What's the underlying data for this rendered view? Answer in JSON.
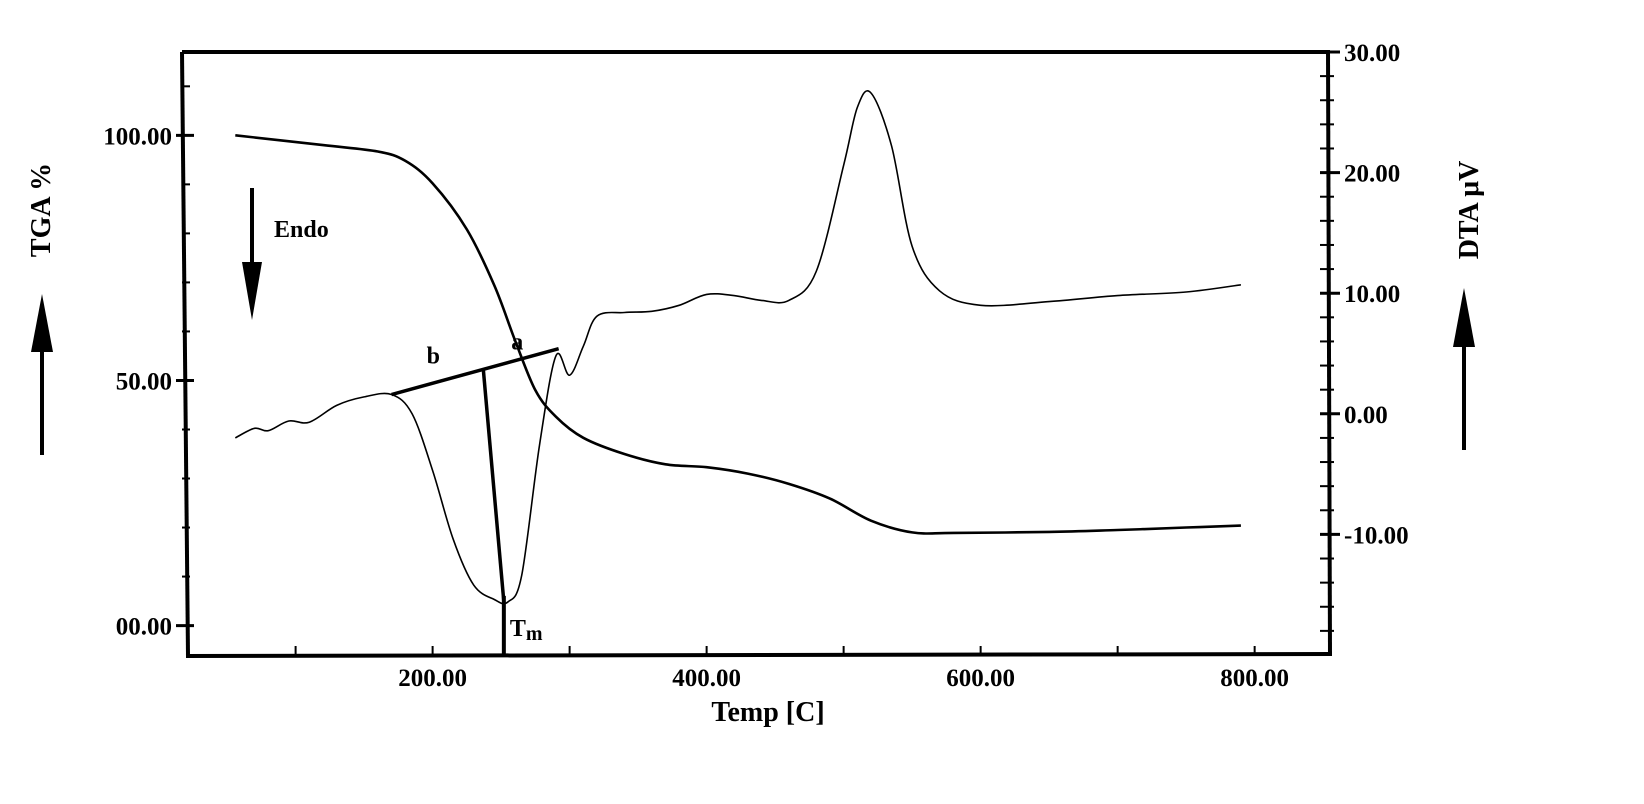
{
  "chart_data": {
    "type": "line",
    "xlabel": "Temp [C]",
    "ylabel_left": "TGA %",
    "ylabel_right": "DTA μV",
    "xlim": [
      20,
      855
    ],
    "x_ticks": [
      {
        "value": 200,
        "label": "200.00"
      },
      {
        "value": 400,
        "label": "400.00"
      },
      {
        "value": 600,
        "label": "600.00"
      },
      {
        "value": 800,
        "label": "800.00"
      }
    ],
    "ylim_left": [
      -6,
      117
    ],
    "left_ticks": [
      {
        "value": 0,
        "label": "00.00"
      },
      {
        "value": 50,
        "label": "50.00"
      },
      {
        "value": 100,
        "label": "100.00"
      }
    ],
    "ylim_right": [
      -20,
      30
    ],
    "right_ticks": [
      {
        "value": 30,
        "label": "30.00"
      },
      {
        "value": 20,
        "label": "20.00"
      },
      {
        "value": 10,
        "label": "10.00"
      },
      {
        "value": 0,
        "label": "0.00"
      },
      {
        "value": -10,
        "label": "-10.00"
      }
    ],
    "grid": false,
    "series": [
      {
        "axis": "left",
        "stroke_width": 2.6,
        "x": [
          56,
          120,
          160,
          180,
          200,
          225,
          245,
          260,
          275,
          290,
          310,
          340,
          370,
          400,
          430,
          460,
          490,
          520,
          550,
          580,
          650,
          700,
          750,
          790
        ],
        "y": [
          100,
          98,
          96.7,
          94.8,
          90.2,
          80.8,
          69.4,
          58.3,
          48,
          42.6,
          38.3,
          35,
          32.9,
          32.3,
          31,
          28.9,
          25.9,
          21.4,
          19,
          18.9,
          19.1,
          19.5,
          20,
          20.4
        ]
      },
      {
        "axis": "right",
        "stroke_width": 1.6,
        "x": [
          56,
          70,
          80,
          95,
          110,
          130,
          150,
          170,
          185,
          200,
          215,
          230,
          245,
          255,
          265,
          278,
          290,
          300,
          310,
          320,
          340,
          360,
          380,
          400,
          420,
          440,
          460,
          480,
          500,
          510,
          520,
          535,
          550,
          570,
          600,
          650,
          700,
          750,
          790
        ],
        "y": [
          -2,
          -1.2,
          -1.4,
          -0.6,
          -0.7,
          0.7,
          1.4,
          1.6,
          0,
          -4.7,
          -10.4,
          -14.2,
          -15.4,
          -15.6,
          -13.4,
          -2.6,
          4.8,
          3.2,
          5.6,
          8.1,
          8.4,
          8.5,
          9,
          9.9,
          9.8,
          9.4,
          9.4,
          11.8,
          20.6,
          25.4,
          26.6,
          22.2,
          13.9,
          10.2,
          9,
          9.3,
          9.8,
          10.1,
          10.7
        ]
      }
    ],
    "annotations": {
      "endo_label": "Endo",
      "point_a": "a",
      "point_b": "b",
      "tm_label": "T",
      "tm_subscript": "m",
      "baseline_left": {
        "x": 170,
        "y": 1.6
      },
      "baseline_right": {
        "x": 292,
        "y": 5.4
      },
      "point_b_x": 237,
      "tm_x": 252,
      "tm_y": -15.6
    }
  }
}
